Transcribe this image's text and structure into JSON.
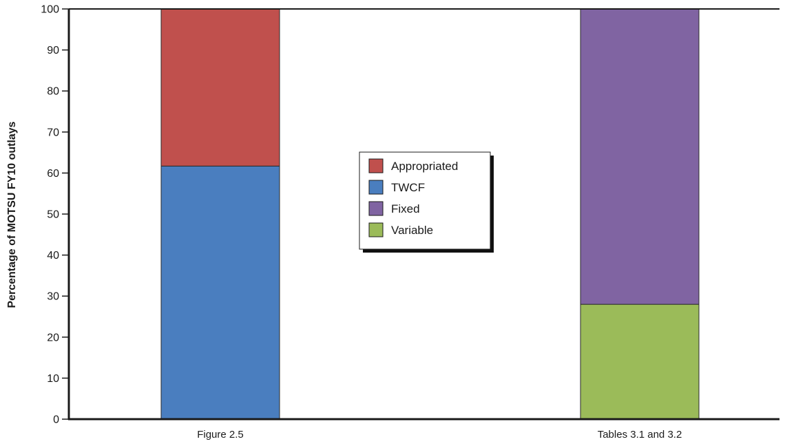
{
  "chart_data": {
    "type": "bar",
    "stacked": true,
    "title": "",
    "xlabel": "",
    "ylabel": "Percentage of MOTSU FY10 outlays",
    "ylim": [
      0,
      100
    ],
    "yticks": [
      0,
      10,
      20,
      30,
      40,
      50,
      60,
      70,
      80,
      90,
      100
    ],
    "grid": false,
    "legend_position": "center",
    "categories": [
      "Figure 2.5",
      "Tables 3.1 and 3.2"
    ],
    "series": [
      {
        "name": "Appropriated",
        "color": "#c0504d",
        "values": [
          38.3,
          0
        ]
      },
      {
        "name": "TWCF",
        "color": "#4a7ebf",
        "values": [
          61.7,
          0
        ]
      },
      {
        "name": "Fixed",
        "color": "#8064a2",
        "values": [
          0,
          72
        ]
      },
      {
        "name": "Variable",
        "color": "#9bbb59",
        "values": [
          0,
          28
        ]
      }
    ],
    "stack_order": [
      "TWCF",
      "Appropriated",
      "Variable",
      "Fixed"
    ]
  }
}
